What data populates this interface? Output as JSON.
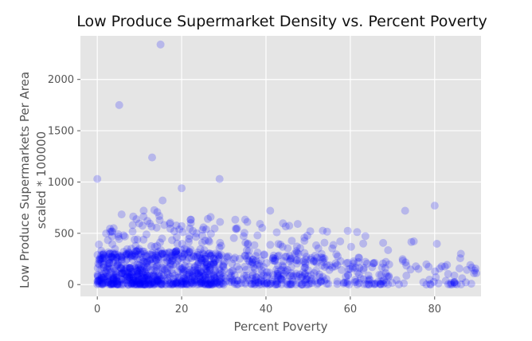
{
  "chart_data": {
    "type": "scatter",
    "title": "Low Produce Supermarket Density vs. Percent Poverty",
    "xlabel": "Percent Poverty",
    "ylabel_lines": [
      "Low Produce Supermarkets Per Area",
      "scaled * 100000"
    ],
    "xlim": [
      -4,
      91
    ],
    "ylim": [
      -115,
      2425
    ],
    "xticks": [
      0,
      20,
      40,
      60,
      80
    ],
    "yticks": [
      0,
      500,
      1000,
      1500,
      2000
    ],
    "grid": true,
    "legend": "none",
    "colors": {
      "marker": "#0000ff",
      "background": "#e5e5e5",
      "grid": "#ffffff",
      "text": "#555555",
      "title": "#111111"
    },
    "marker_alpha": 0.2,
    "notes_outliers": [
      [
        15,
        2340
      ],
      [
        5.2,
        1750
      ],
      [
        13,
        1240
      ],
      [
        0,
        1030
      ],
      [
        29,
        1030
      ],
      [
        20,
        940
      ],
      [
        15.5,
        820
      ],
      [
        41,
        720
      ],
      [
        73,
        720
      ],
      [
        80,
        770
      ]
    ],
    "point_density_profile": {
      "segments": [
        [
          0,
          12,
          350
        ],
        [
          12,
          30,
          420
        ],
        [
          30,
          50,
          230
        ],
        [
          50,
          70,
          140
        ],
        [
          70,
          90,
          55
        ]
      ],
      "typical_max_by_x": [
        [
          0,
          300
        ],
        [
          10,
          350
        ],
        [
          30,
          300
        ],
        [
          50,
          280
        ],
        [
          70,
          220
        ],
        [
          90,
          200
        ]
      ]
    }
  }
}
